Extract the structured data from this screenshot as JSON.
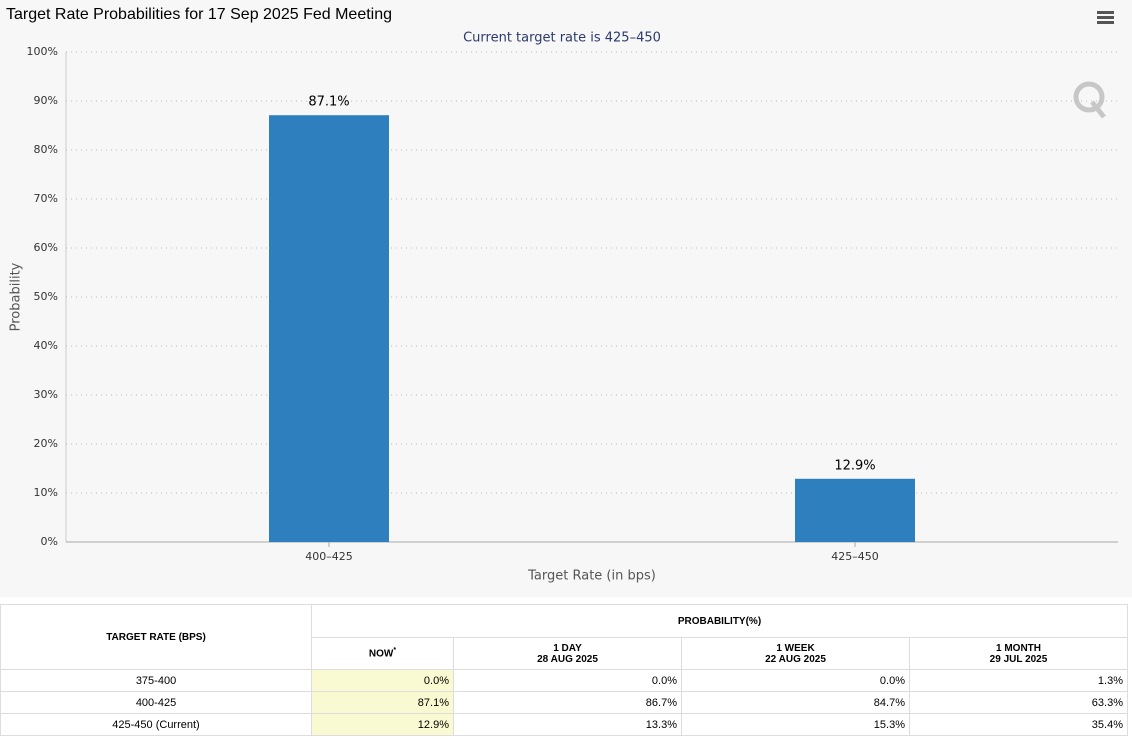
{
  "chart_data": {
    "type": "bar",
    "title": "Target Rate Probabilities for 17 Sep 2025 Fed Meeting",
    "subtitle": "Current target rate is 425–450",
    "x_label": "Target Rate (in bps)",
    "y_label": "Probability",
    "categories": [
      "400–425",
      "425–450"
    ],
    "values": [
      87.1,
      12.9
    ],
    "value_labels": [
      "87.1%",
      "12.9%"
    ],
    "color": "#2e7fbd",
    "ylim": [
      0,
      100
    ],
    "yticks": [
      {
        "value": 0,
        "label": "0%"
      },
      {
        "value": 10,
        "label": "10%"
      },
      {
        "value": 20,
        "label": "20%"
      },
      {
        "value": 30,
        "label": "30%"
      },
      {
        "value": 40,
        "label": "40%"
      },
      {
        "value": 50,
        "label": "50%"
      },
      {
        "value": 60,
        "label": "60%"
      },
      {
        "value": 70,
        "label": "70%"
      },
      {
        "value": 80,
        "label": "80%"
      },
      {
        "value": 90,
        "label": "90%"
      },
      {
        "value": 100,
        "label": "100%"
      }
    ],
    "grid": true
  },
  "table": {
    "header": {
      "rate": "TARGET RATE (BPS)",
      "probability": "PROBABILITY(%)",
      "columns": [
        [
          "NOW",
          "*"
        ],
        [
          "1 DAY",
          "28 AUG 2025"
        ],
        [
          "1 WEEK",
          "22 AUG 2025"
        ],
        [
          "1 MONTH",
          "29 JUL 2025"
        ]
      ]
    },
    "rows": [
      [
        "375-400",
        "0.0%",
        "0.0%",
        "0.0%",
        "1.3%"
      ],
      [
        "400-425",
        "87.1%",
        "86.7%",
        "84.7%",
        "63.3%"
      ],
      [
        "425-450 (Current)",
        "12.9%",
        "13.3%",
        "15.3%",
        "35.4%"
      ]
    ]
  }
}
